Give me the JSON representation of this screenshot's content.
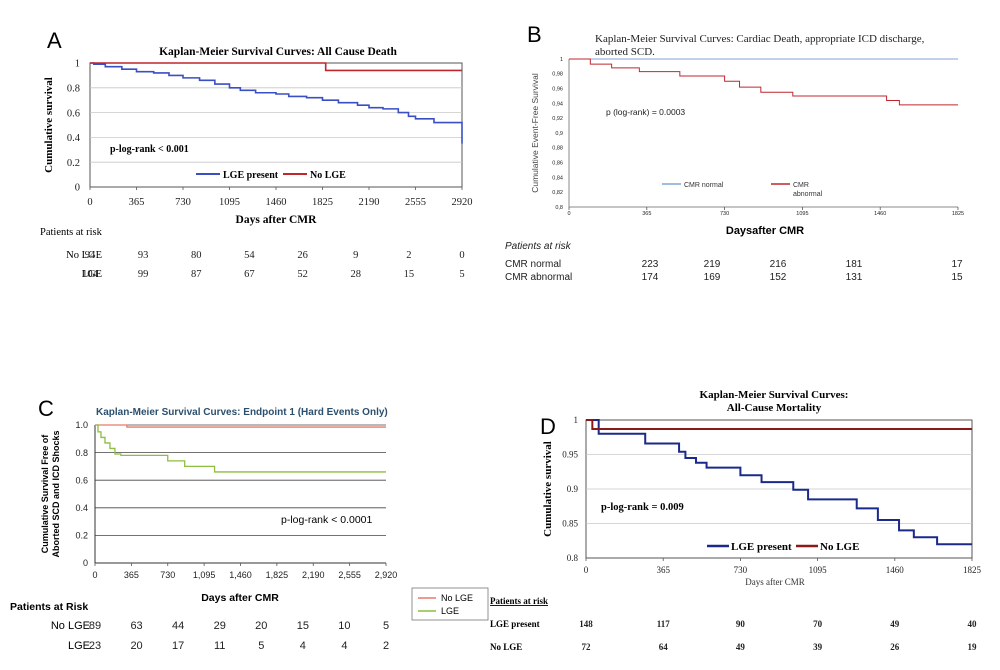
{
  "chart_data": [
    {
      "panel_letter": "A",
      "type": "line",
      "title": "Kaplan-Meier Survival Curves: All Cause Death",
      "xlabel": "Days after CMR",
      "ylabel": "Cumulative survival",
      "xlim": [
        0,
        2920
      ],
      "ylim": [
        0,
        1
      ],
      "xticks": [
        "0",
        "365",
        "730",
        "1095",
        "1460",
        "1825",
        "2190",
        "2555",
        "2920"
      ],
      "yticks": [
        "0",
        "0.2",
        "0.4",
        "0.6",
        "0.8",
        "1"
      ],
      "annotation": "p-log-rank < 0.001",
      "series": [
        {
          "name": "LGE present",
          "color": "#3a4fc4",
          "x": [
            0,
            30,
            120,
            250,
            365,
            500,
            620,
            730,
            860,
            980,
            1095,
            1180,
            1300,
            1460,
            1560,
            1700,
            1825,
            1950,
            2100,
            2190,
            2300,
            2420,
            2500,
            2555,
            2700,
            2900,
            2920
          ],
          "y": [
            1.0,
            0.99,
            0.97,
            0.95,
            0.93,
            0.92,
            0.9,
            0.88,
            0.86,
            0.83,
            0.8,
            0.78,
            0.76,
            0.75,
            0.73,
            0.72,
            0.7,
            0.68,
            0.66,
            0.64,
            0.63,
            0.6,
            0.57,
            0.55,
            0.52,
            0.52,
            0.35
          ]
        },
        {
          "name": "No LGE",
          "color": "#c0272d",
          "x": [
            0,
            1850,
            2920
          ],
          "y": [
            1.0,
            0.94,
            0.94
          ]
        }
      ],
      "risk_table": {
        "header": "Patients at risk",
        "rows": [
          {
            "label": "No LGE",
            "values": [
              "94",
              "93",
              "80",
              "54",
              "26",
              "9",
              "2",
              "0"
            ]
          },
          {
            "label": "LGE",
            "values": [
              "104",
              "99",
              "87",
              "67",
              "52",
              "28",
              "15",
              "5"
            ]
          }
        ]
      }
    },
    {
      "panel_letter": "B",
      "type": "line",
      "title_line1": "Kaplan-Meier Survival Curves: Cardiac Death, appropriate ICD discharge,",
      "title_line2": "aborted SCD.",
      "xlabel": "Daysafter CMR",
      "ylabel": "Cumulative Event-Free Survival",
      "xlim": [
        0,
        1825
      ],
      "ylim": [
        0.8,
        1
      ],
      "xticks": [
        "0",
        "365",
        "730",
        "1095",
        "1460",
        "1825"
      ],
      "yticks": [
        "0,8",
        "0,82",
        "0,84",
        "0,86",
        "0,88",
        "0,9",
        "0,92",
        "0,94",
        "0,96",
        "0,98",
        "1"
      ],
      "annotation": "p (log-rank) = 0.0003",
      "series": [
        {
          "name": "CMR normal",
          "color": "#7fa6d4",
          "x": [
            0,
            1825
          ],
          "y": [
            1.0,
            1.0
          ]
        },
        {
          "name": "CMR abnormal",
          "color": "#c0272d",
          "x": [
            0,
            100,
            200,
            330,
            520,
            730,
            800,
            900,
            1050,
            1300,
            1490,
            1550,
            1825
          ],
          "y": [
            1.0,
            0.993,
            0.988,
            0.983,
            0.977,
            0.97,
            0.962,
            0.955,
            0.95,
            0.95,
            0.944,
            0.938,
            0.938
          ]
        }
      ],
      "legend_abnormal_line1": "CMR",
      "legend_abnormal_line2": "abnormal",
      "risk_table": {
        "header": "Patients at risk",
        "rows": [
          {
            "label": "CMR normal",
            "values": [
              "223",
              "219",
              "216",
              "181",
              "17"
            ]
          },
          {
            "label": "CMR abnormal",
            "values": [
              "174",
              "169",
              "152",
              "131",
              "15"
            ]
          }
        ]
      }
    },
    {
      "panel_letter": "C",
      "type": "line",
      "title": "Kaplan-Meier Survival Curves: Endpoint 1 (Hard Events Only)",
      "xlabel": "Days after CMR",
      "ylabel_line1": "Cumulative Survival Free of",
      "ylabel_line2": "Aborted SCD and ICD Shocks",
      "xlim": [
        0,
        2920
      ],
      "ylim": [
        0,
        1
      ],
      "xticks": [
        "0",
        "365",
        "730",
        "1,095",
        "1,460",
        "1,825",
        "2,190",
        "2,555",
        "2,920"
      ],
      "yticks": [
        "0",
        "0.2",
        "0.4",
        "0.6",
        "0.8",
        "1.0"
      ],
      "annotation": "p-log-rank < 0.0001",
      "series": [
        {
          "name": "No LGE",
          "color": "#e87a6a",
          "x": [
            0,
            320,
            2920
          ],
          "y": [
            1.0,
            0.985,
            0.985
          ]
        },
        {
          "name": "LGE",
          "color": "#8cbf3f",
          "x": [
            0,
            30,
            60,
            100,
            150,
            200,
            260,
            365,
            560,
            730,
            900,
            1200,
            1500,
            2920
          ],
          "y": [
            1.0,
            0.95,
            0.91,
            0.87,
            0.83,
            0.79,
            0.78,
            0.78,
            0.78,
            0.74,
            0.7,
            0.66,
            0.66,
            0.66
          ]
        }
      ],
      "risk_table": {
        "header": "Patients at Risk",
        "rows": [
          {
            "label": "No LGE",
            "values": [
              "89",
              "63",
              "44",
              "29",
              "20",
              "15",
              "10",
              "5"
            ]
          },
          {
            "label": "LGE",
            "values": [
              "23",
              "20",
              "17",
              "11",
              "5",
              "4",
              "4",
              "2"
            ]
          }
        ]
      }
    },
    {
      "panel_letter": "D",
      "type": "line",
      "title_line1": "Kaplan-Meier Survival Curves:",
      "title_line2": "All-Cause Mortality",
      "xlabel": "Days after CMR",
      "ylabel": "Cumulative survival",
      "xlim": [
        0,
        1825
      ],
      "ylim": [
        0.8,
        1
      ],
      "xticks": [
        "0",
        "365",
        "730",
        "1095",
        "1460",
        "1825"
      ],
      "yticks": [
        "0.8",
        "0.85",
        "0.9",
        "0.95",
        "1"
      ],
      "annotation": "p-log-rank = 0.009",
      "series": [
        {
          "name": "LGE present",
          "color": "#1b2a8a",
          "x": [
            0,
            60,
            180,
            280,
            400,
            440,
            470,
            520,
            570,
            730,
            830,
            980,
            1050,
            1130,
            1280,
            1380,
            1480,
            1550,
            1660,
            1825
          ],
          "y": [
            1.0,
            0.98,
            0.98,
            0.966,
            0.966,
            0.954,
            0.945,
            0.938,
            0.931,
            0.92,
            0.91,
            0.899,
            0.885,
            0.885,
            0.872,
            0.855,
            0.84,
            0.83,
            0.82,
            0.82
          ]
        },
        {
          "name": "No LGE",
          "color": "#8a1a1a",
          "x": [
            0,
            30,
            1825
          ],
          "y": [
            1.0,
            0.987,
            0.987
          ]
        }
      ],
      "risk_table": {
        "header": "Patients at risk",
        "rows": [
          {
            "label": "LGE present",
            "values": [
              "148",
              "117",
              "90",
              "70",
              "49",
              "40"
            ]
          },
          {
            "label": "No LGE",
            "values": [
              "72",
              "64",
              "49",
              "39",
              "26",
              "19"
            ]
          }
        ]
      }
    }
  ]
}
